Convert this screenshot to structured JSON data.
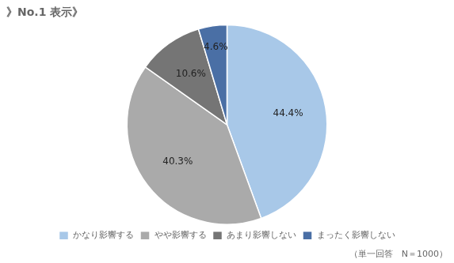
{
  "chart_data": {
    "type": "pie",
    "title": "》No.1 表示》",
    "categories": [
      "かなり影響する",
      "やや影響する",
      "あまり影響しない",
      "まったく影響しない"
    ],
    "values": [
      44.4,
      40.3,
      10.6,
      4.6
    ],
    "value_labels": [
      "44.4%",
      "40.3%",
      "10.6%",
      "4.6%"
    ],
    "colors": [
      "#a8c8e8",
      "#aaaaaa",
      "#757575",
      "#4a6fa5"
    ],
    "data_labels": true,
    "legend": "bottom",
    "annotations": [
      "（単一回答　N＝1000）"
    ]
  }
}
